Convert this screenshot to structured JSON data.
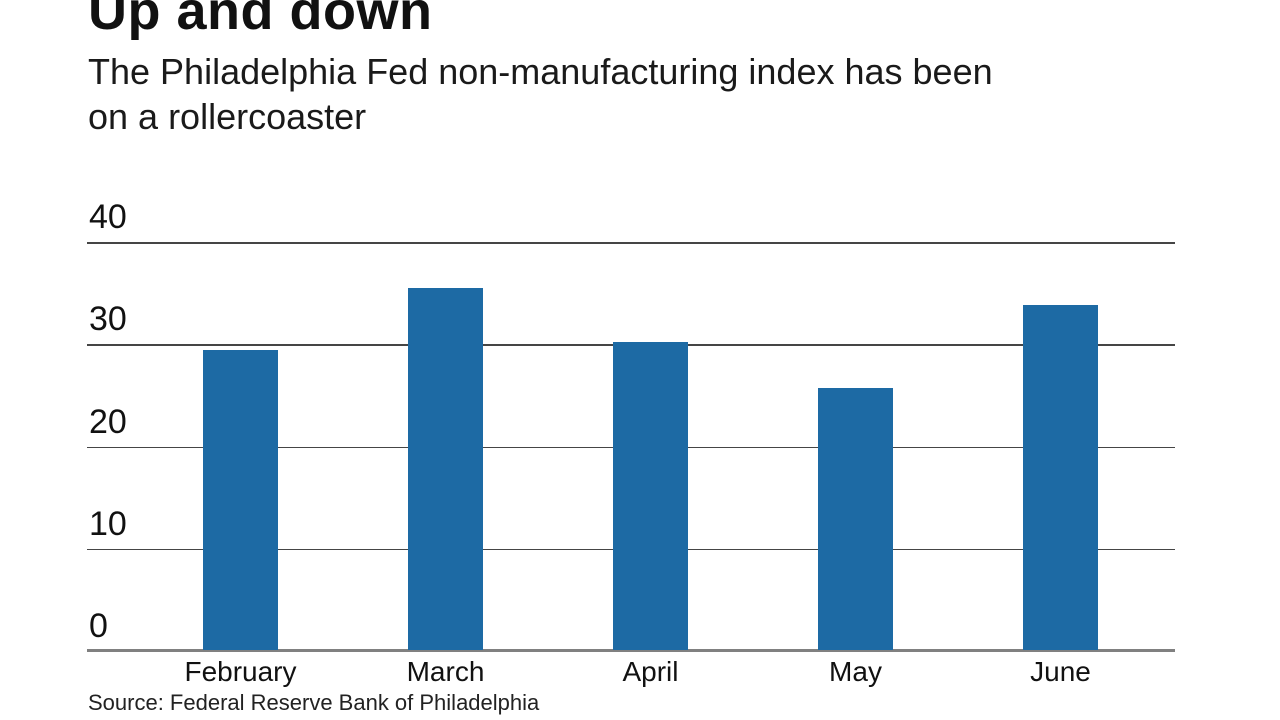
{
  "chart_data": {
    "type": "bar",
    "title": "Up and down",
    "subtitle": "The Philadelphia Fed non-manufacturing index has been\non a rollercoaster",
    "source": "Source: Federal Reserve Bank of Philadelphia",
    "categories": [
      "February",
      "March",
      "April",
      "May",
      "June"
    ],
    "values": [
      29.3,
      35.4,
      30.1,
      25.6,
      33.7
    ],
    "xlabel": "",
    "ylabel": "",
    "yticks": [
      0,
      10,
      20,
      30,
      40
    ],
    "ylim": [
      0,
      40
    ],
    "grid": true,
    "legend": false,
    "bar_color": "#1d6aa4",
    "gridline_color": "#454545",
    "baseline_color": "#808080",
    "text_color": "#111111"
  }
}
